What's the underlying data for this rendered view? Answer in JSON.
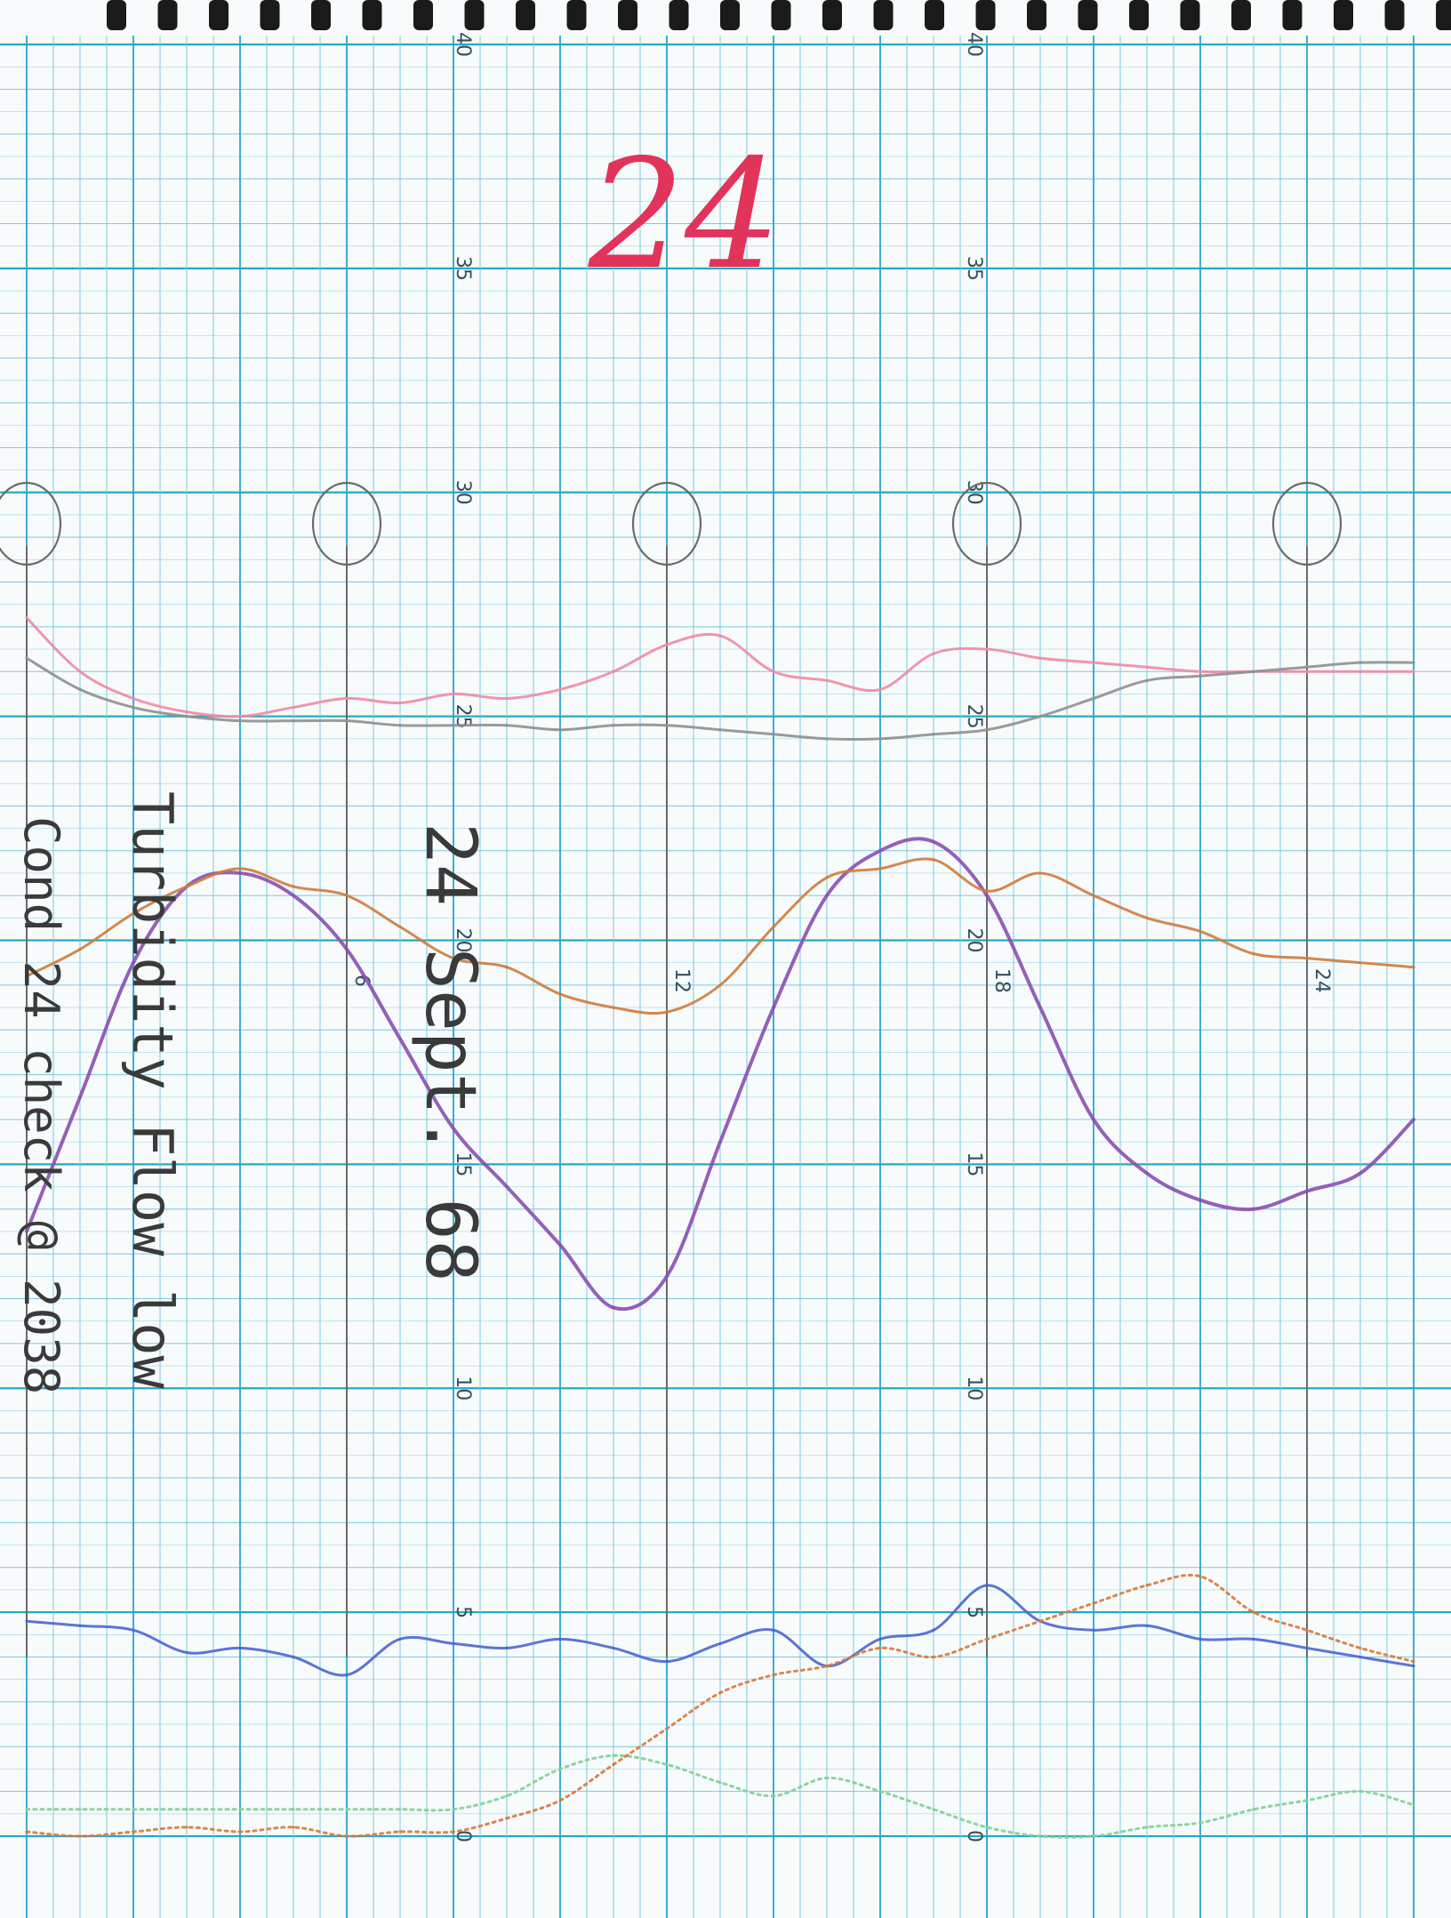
{
  "page": {
    "header_number": "24",
    "header_color": "#e2335a"
  },
  "annotations": {
    "date": "24 Sept. 68",
    "turbidity_line": "Turbidity Flow low",
    "cond_line": "Cond 24 check @ 2038"
  },
  "paper": {
    "background": "#f7fbfc",
    "minor_grid": "#7cc8dc",
    "major_grid": "#2aa6c8",
    "pencil": "#6a6a6a"
  },
  "chart_data": {
    "type": "line",
    "y_axis": {
      "ylim": [
        0,
        40
      ],
      "tick_labels": [
        "40",
        "35",
        "30",
        "25",
        "20",
        "15",
        "10",
        "5",
        "0"
      ],
      "tick_values": [
        40,
        35,
        30,
        25,
        20,
        15,
        10,
        5,
        0
      ]
    },
    "x_axis": {
      "xlim": [
        0,
        26
      ],
      "hour_labels": [
        "6",
        "12",
        "18",
        "24"
      ],
      "hour_values": [
        6,
        12,
        18,
        24
      ],
      "hour_label_positions_y": [
        20,
        20,
        20,
        20
      ]
    },
    "circled_marks_hours": [
      0,
      6,
      12,
      18,
      24
    ],
    "series": [
      {
        "color": "#8a4fb0",
        "x": [
          0,
          1,
          2,
          3,
          4,
          5,
          6,
          7,
          8,
          9,
          10,
          11,
          12,
          13,
          14,
          15,
          16,
          17,
          18,
          19,
          20,
          21,
          22,
          23,
          24,
          25,
          26
        ],
        "y": [
          13.5,
          16.5,
          19.5,
          21.2,
          21.5,
          21,
          19.8,
          17.8,
          15.8,
          14.5,
          13.2,
          11.8,
          12.5,
          15.5,
          18.5,
          21,
          22,
          22.2,
          21,
          18.5,
          16,
          14.8,
          14.2,
          14,
          14.4,
          14.8,
          16
        ]
      },
      {
        "color": "#d07a3a",
        "x": [
          0,
          1,
          2,
          3,
          4,
          5,
          6,
          7,
          8,
          9,
          10,
          11,
          12,
          13,
          14,
          15,
          16,
          17,
          18,
          19,
          20,
          21,
          22,
          23,
          24,
          25,
          26
        ],
        "y": [
          19.2,
          19.8,
          20.6,
          21.2,
          21.6,
          21.2,
          21,
          20.3,
          19.6,
          19.4,
          18.8,
          18.5,
          18.4,
          19,
          20.3,
          21.4,
          21.6,
          21.8,
          21.1,
          21.5,
          21,
          20.5,
          20.2,
          19.7,
          19.6,
          19.5,
          19.4
        ]
      },
      {
        "color": "#ee8aa6",
        "x": [
          0,
          1,
          2,
          3,
          4,
          5,
          6,
          7,
          8,
          9,
          10,
          11,
          12,
          13,
          14,
          15,
          16,
          17,
          18,
          19,
          20,
          21,
          22,
          23,
          24,
          25,
          26
        ],
        "y": [
          27.2,
          26,
          25.4,
          25.1,
          25,
          25.2,
          25.4,
          25.3,
          25.5,
          25.4,
          25.6,
          26,
          26.6,
          26.8,
          26,
          25.8,
          25.6,
          26.4,
          26.5,
          26.3,
          26.2,
          26.1,
          26,
          26,
          26,
          26,
          26
        ]
      },
      {
        "color": "#8f8f8f",
        "x": [
          0,
          1,
          2,
          3,
          4,
          5,
          6,
          7,
          8,
          9,
          10,
          11,
          12,
          13,
          14,
          15,
          16,
          17,
          18,
          19,
          20,
          21,
          22,
          23,
          24,
          25,
          26
        ],
        "y": [
          26.3,
          25.6,
          25.2,
          25,
          24.9,
          24.9,
          24.9,
          24.8,
          24.8,
          24.8,
          24.7,
          24.8,
          24.8,
          24.7,
          24.6,
          24.5,
          24.5,
          24.6,
          24.7,
          25,
          25.4,
          25.8,
          25.9,
          26,
          26.1,
          26.2,
          26.2
        ]
      },
      {
        "color": "#4a66cf",
        "x": [
          0,
          1,
          2,
          3,
          4,
          5,
          6,
          7,
          8,
          9,
          10,
          11,
          12,
          13,
          14,
          15,
          16,
          17,
          18,
          19,
          20,
          21,
          22,
          23,
          24,
          25,
          26
        ],
        "y": [
          4.8,
          4.7,
          4.6,
          4.1,
          4.2,
          4.0,
          3.6,
          4.4,
          4.3,
          4.2,
          4.4,
          4.2,
          3.9,
          4.3,
          4.6,
          3.8,
          4.4,
          4.6,
          5.6,
          4.8,
          4.6,
          4.7,
          4.4,
          4.4,
          4.2,
          4.0,
          3.8
        ]
      },
      {
        "color": "#7fcf98",
        "x": [
          0,
          1,
          2,
          3,
          4,
          5,
          6,
          7,
          8,
          9,
          10,
          11,
          12,
          13,
          14,
          15,
          16,
          17,
          18,
          19,
          20,
          21,
          22,
          23,
          24,
          25,
          26
        ],
        "y": [
          0.6,
          0.6,
          0.6,
          0.6,
          0.6,
          0.6,
          0.6,
          0.6,
          0.6,
          0.9,
          1.5,
          1.8,
          1.6,
          1.2,
          0.9,
          1.3,
          1.0,
          0.6,
          0.2,
          0.0,
          0.0,
          0.2,
          0.3,
          0.6,
          0.8,
          1.0,
          0.7
        ]
      },
      {
        "color": "#d8783a",
        "x": [
          0,
          1,
          2,
          3,
          4,
          5,
          6,
          7,
          8,
          9,
          10,
          11,
          12,
          13,
          14,
          15,
          16,
          17,
          18,
          19,
          20,
          21,
          22,
          23,
          24,
          25,
          26
        ],
        "y": [
          0.1,
          0.0,
          0.1,
          0.2,
          0.1,
          0.2,
          0.0,
          0.1,
          0.1,
          0.4,
          0.8,
          1.6,
          2.4,
          3.2,
          3.6,
          3.8,
          4.2,
          4.0,
          4.4,
          4.8,
          5.2,
          5.6,
          5.8,
          5.0,
          4.6,
          4.2,
          3.9
        ]
      }
    ]
  }
}
